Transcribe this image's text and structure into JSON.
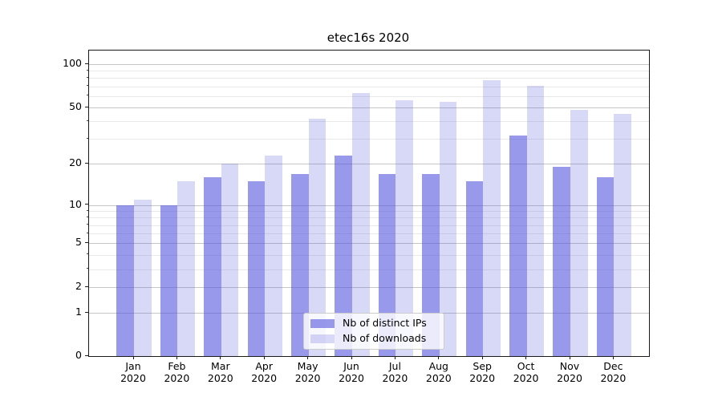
{
  "title": "etec16s 2020",
  "chart_data": {
    "type": "bar",
    "title": "etec16s 2020",
    "categories": [
      "Jan 2020",
      "Feb 2020",
      "Mar 2020",
      "Apr 2020",
      "May 2020",
      "Jun 2020",
      "Jul 2020",
      "Aug 2020",
      "Sep 2020",
      "Oct 2020",
      "Nov 2020",
      "Dec 2020"
    ],
    "series": [
      {
        "name": "Nb of distinct IPs",
        "values": [
          10,
          10,
          16,
          15,
          17,
          23,
          17,
          17,
          15,
          32,
          19,
          16
        ]
      },
      {
        "name": "Nb of downloads",
        "values": [
          11,
          15,
          20,
          23,
          42,
          63,
          56,
          55,
          77,
          71,
          48,
          45
        ]
      }
    ],
    "xlabel": "",
    "ylabel": "",
    "y_scale": "log1p",
    "y_ticks": [
      100,
      50,
      20,
      10,
      5,
      2,
      1,
      0
    ],
    "y_minor_ticks": [
      3,
      4,
      6,
      7,
      8,
      9,
      30,
      40,
      60,
      70,
      80,
      90
    ],
    "ylim": [
      0,
      124
    ],
    "grid": "horizontal-major-and-minor",
    "legend_position": "lower-center"
  },
  "x_labels": [
    {
      "line1": "Jan",
      "line2": "2020"
    },
    {
      "line1": "Feb",
      "line2": "2020"
    },
    {
      "line1": "Mar",
      "line2": "2020"
    },
    {
      "line1": "Apr",
      "line2": "2020"
    },
    {
      "line1": "May",
      "line2": "2020"
    },
    {
      "line1": "Jun",
      "line2": "2020"
    },
    {
      "line1": "Jul",
      "line2": "2020"
    },
    {
      "line1": "Aug",
      "line2": "2020"
    },
    {
      "line1": "Sep",
      "line2": "2020"
    },
    {
      "line1": "Oct",
      "line2": "2020"
    },
    {
      "line1": "Nov",
      "line2": "2020"
    },
    {
      "line1": "Dec",
      "line2": "2020"
    }
  ],
  "colors": {
    "bar_distinct_ips": "rgba(85,85,221,0.60)",
    "bar_downloads": "rgba(85,85,221,0.23)",
    "grid_major": "#c6c6c6",
    "grid_minor": "#e9e9e9",
    "axis": "#1a1a1a",
    "legend_background": "rgba(255,255,255,0.8)",
    "legend_border": "#cccccc",
    "text": "#000000"
  }
}
